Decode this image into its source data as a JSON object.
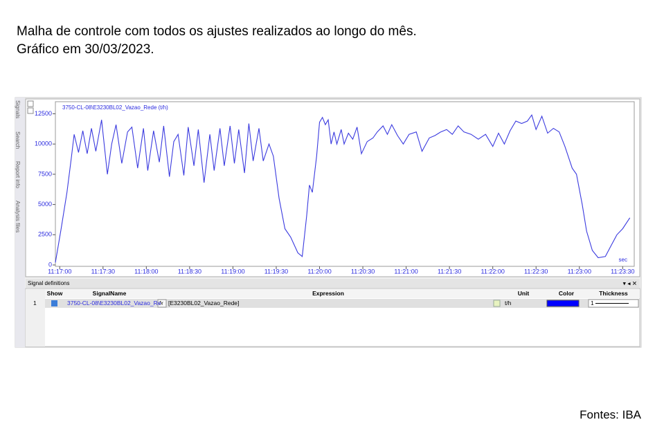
{
  "page": {
    "caption_lines": [
      "Malha de controle com todos os ajustes realizados ao longo do mês.",
      "Gráfico em 30/03/2023."
    ],
    "source": "Fontes: IBA",
    "sidebar_tabs": [
      "Signals",
      "Search",
      "Report info",
      "Analysis files"
    ]
  },
  "chart_data": {
    "type": "line",
    "x_unit": "sec",
    "x": [
      "11:16:57",
      "11:17:01",
      "11:17:05",
      "11:17:08",
      "11:17:10",
      "11:17:13",
      "11:17:16",
      "11:17:19",
      "11:17:22",
      "11:17:25",
      "11:17:29",
      "11:17:33",
      "11:17:36",
      "11:17:39",
      "11:17:43",
      "11:17:47",
      "11:17:50",
      "11:17:54",
      "11:17:58",
      "11:18:01",
      "11:18:05",
      "11:18:09",
      "11:18:12",
      "11:18:16",
      "11:18:19",
      "11:18:22",
      "11:18:26",
      "11:18:29",
      "11:18:33",
      "11:18:36",
      "11:18:40",
      "11:18:44",
      "11:18:47",
      "11:18:51",
      "11:18:54",
      "11:18:58",
      "11:19:01",
      "11:19:04",
      "11:19:08",
      "11:19:11",
      "11:19:14",
      "11:19:18",
      "11:19:21",
      "11:19:25",
      "11:19:28",
      "11:19:32",
      "11:19:36",
      "11:19:40",
      "11:19:45",
      "11:19:48",
      "11:19:51",
      "11:19:53",
      "11:19:55",
      "11:19:58",
      "11:20:00",
      "11:20:02",
      "11:20:04",
      "11:20:06",
      "11:20:08",
      "11:20:10",
      "11:20:12",
      "11:20:15",
      "11:20:17",
      "11:20:20",
      "11:20:23",
      "11:20:26",
      "11:20:29",
      "11:20:33",
      "11:20:37",
      "11:20:40",
      "11:20:44",
      "11:20:47",
      "11:20:50",
      "11:20:54",
      "11:20:58",
      "11:21:02",
      "11:21:07",
      "11:21:11",
      "11:21:16",
      "11:21:20",
      "11:21:24",
      "11:21:28",
      "11:21:32",
      "11:21:36",
      "11:21:40",
      "11:21:45",
      "11:21:50",
      "11:21:55",
      "11:22:00",
      "11:22:04",
      "11:22:08",
      "11:22:12",
      "11:22:16",
      "11:22:20",
      "11:22:24",
      "11:22:27",
      "11:22:30",
      "11:22:34",
      "11:22:38",
      "11:22:42",
      "11:22:46",
      "11:22:50",
      "11:22:55",
      "11:22:58",
      "11:23:02",
      "11:23:05",
      "11:23:09",
      "11:23:13",
      "11:23:18",
      "11:23:22",
      "11:23:26",
      "11:23:30",
      "11:23:35"
    ],
    "series": [
      {
        "name": "3750-CL-08\\E3230BL02_Vazao_Rede (t/h)",
        "color": "#3a3adf",
        "values": [
          200,
          3000,
          6000,
          8800,
          10800,
          9300,
          11100,
          9200,
          11300,
          9400,
          12000,
          7500,
          10000,
          11600,
          8400,
          11000,
          11400,
          8000,
          11300,
          7800,
          11100,
          8500,
          11500,
          7300,
          10200,
          10800,
          7400,
          11400,
          8200,
          11200,
          6800,
          10800,
          7800,
          11300,
          8200,
          11500,
          8400,
          11200,
          7600,
          11700,
          8600,
          11300,
          8600,
          10000,
          9000,
          5500,
          3000,
          2300,
          1000,
          700,
          4000,
          6600,
          6000,
          9000,
          11800,
          12200,
          11600,
          12000,
          10000,
          11000,
          10000,
          11200,
          10000,
          10900,
          10400,
          11400,
          9200,
          10200,
          10500,
          11000,
          11500,
          10800,
          11600,
          10700,
          10000,
          10800,
          11000,
          9400,
          10500,
          10700,
          11000,
          11200,
          10800,
          11500,
          11000,
          10800,
          10400,
          10800,
          9800,
          10900,
          10000,
          11100,
          11900,
          11700,
          11900,
          12400,
          11200,
          12300,
          10900,
          11300,
          11000,
          9800,
          8000,
          7500,
          5000,
          2800,
          1200,
          600,
          700,
          1600,
          2500,
          3000,
          3900
        ]
      }
    ],
    "xlim": [
      "11:16:57",
      "11:23:38"
    ],
    "xticks": [
      "11:17:00",
      "11:17:30",
      "11:18:00",
      "11:18:30",
      "11:19:00",
      "11:19:30",
      "11:20:00",
      "11:20:30",
      "11:21:00",
      "11:21:30",
      "11:22:00",
      "11:22:30",
      "11:23:00",
      "11:23:30"
    ],
    "ylim": [
      0,
      13500
    ],
    "yticks": [
      0,
      2500,
      5000,
      7500,
      10000,
      12500
    ]
  },
  "signal_table": {
    "title": "Signal definitions",
    "columns": [
      "Show",
      "SignalName",
      "Expression",
      "Unit",
      "Color",
      "Thickness"
    ],
    "rows": [
      {
        "index": "1",
        "signal_name": "3750-CL-08\\E3230BL02_Vazao_Re",
        "expression": "[E3230BL02_Vazao_Rede]",
        "unit": "t/h",
        "color": "#0000ff",
        "thickness": "1"
      }
    ]
  }
}
